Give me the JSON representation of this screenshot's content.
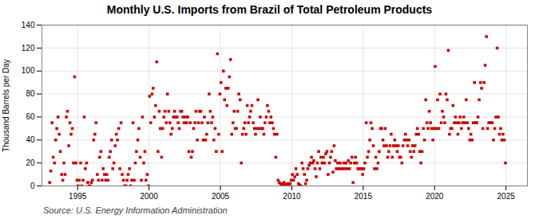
{
  "chart_data": {
    "type": "scatter",
    "title": "Monthly U.S. Imports from Brazil of Total Petroleum Products",
    "ylabel": "Thousand Barrels per Day",
    "source": "Source: U.S. Energy Information Administration",
    "color": "#cc0000",
    "marker": "square",
    "grid": true,
    "xlim": [
      1992.5,
      2026.5
    ],
    "ylim": [
      0,
      140
    ],
    "xticks": [
      1995,
      2000,
      2005,
      2010,
      2015,
      2020,
      2025
    ],
    "yticks": [
      0,
      20,
      40,
      60,
      80,
      100,
      120,
      140
    ],
    "x": [
      1993.04,
      1993.12,
      1993.21,
      1993.29,
      1993.38,
      1993.46,
      1993.54,
      1993.63,
      1993.71,
      1993.79,
      1993.88,
      1993.96,
      1994.04,
      1994.12,
      1994.21,
      1994.29,
      1994.38,
      1994.46,
      1994.54,
      1994.63,
      1994.71,
      1994.79,
      1994.88,
      1994.96,
      1995.04,
      1995.12,
      1995.21,
      1995.29,
      1995.38,
      1995.46,
      1995.54,
      1995.63,
      1995.71,
      1995.79,
      1995.88,
      1995.96,
      1996.04,
      1996.12,
      1996.21,
      1996.29,
      1996.38,
      1996.46,
      1996.54,
      1996.63,
      1996.71,
      1996.79,
      1996.88,
      1996.96,
      1997.04,
      1997.12,
      1997.21,
      1997.29,
      1997.38,
      1997.46,
      1997.54,
      1997.63,
      1997.71,
      1997.79,
      1997.88,
      1997.96,
      1998.04,
      1998.12,
      1998.21,
      1998.29,
      1998.38,
      1998.46,
      1998.54,
      1998.63,
      1998.71,
      1998.79,
      1998.88,
      1998.96,
      1999.04,
      1999.12,
      1999.21,
      1999.29,
      1999.38,
      1999.46,
      1999.54,
      1999.63,
      1999.71,
      1999.79,
      1999.88,
      1999.96,
      2000.04,
      2000.12,
      2000.21,
      2000.29,
      2000.38,
      2000.46,
      2000.54,
      2000.63,
      2000.71,
      2000.79,
      2000.88,
      2000.96,
      2001.04,
      2001.12,
      2001.21,
      2001.29,
      2001.38,
      2001.46,
      2001.54,
      2001.63,
      2001.71,
      2001.79,
      2001.88,
      2001.96,
      2002.04,
      2002.12,
      2002.21,
      2002.29,
      2002.38,
      2002.46,
      2002.54,
      2002.63,
      2002.71,
      2002.79,
      2002.88,
      2002.96,
      2003.04,
      2003.12,
      2003.21,
      2003.29,
      2003.38,
      2003.46,
      2003.54,
      2003.63,
      2003.71,
      2003.79,
      2003.88,
      2003.96,
      2004.04,
      2004.12,
      2004.21,
      2004.29,
      2004.38,
      2004.46,
      2004.54,
      2004.63,
      2004.71,
      2004.79,
      2004.88,
      2004.96,
      2005.04,
      2005.12,
      2005.21,
      2005.29,
      2005.38,
      2005.46,
      2005.54,
      2005.63,
      2005.71,
      2005.79,
      2005.88,
      2005.96,
      2006.04,
      2006.12,
      2006.21,
      2006.29,
      2006.38,
      2006.46,
      2006.54,
      2006.63,
      2006.71,
      2006.79,
      2006.88,
      2006.96,
      2007.04,
      2007.12,
      2007.21,
      2007.29,
      2007.38,
      2007.46,
      2007.54,
      2007.63,
      2007.71,
      2007.79,
      2007.88,
      2007.96,
      2008.04,
      2008.12,
      2008.21,
      2008.29,
      2008.38,
      2008.46,
      2008.54,
      2008.63,
      2008.71,
      2008.79,
      2008.88,
      2008.96,
      2009.04,
      2009.12,
      2009.21,
      2009.29,
      2009.38,
      2009.46,
      2009.54,
      2009.63,
      2009.71,
      2009.79,
      2009.88,
      2009.96,
      2010.04,
      2010.12,
      2010.21,
      2010.29,
      2010.38,
      2010.46,
      2010.54,
      2010.63,
      2010.71,
      2010.79,
      2010.88,
      2010.96,
      2011.04,
      2011.12,
      2011.21,
      2011.29,
      2011.38,
      2011.46,
      2011.54,
      2011.63,
      2011.71,
      2011.79,
      2011.88,
      2011.96,
      2012.04,
      2012.12,
      2012.21,
      2012.29,
      2012.38,
      2012.46,
      2012.54,
      2012.63,
      2012.71,
      2012.79,
      2012.88,
      2012.96,
      2013.04,
      2013.12,
      2013.21,
      2013.29,
      2013.38,
      2013.46,
      2013.54,
      2013.63,
      2013.71,
      2013.79,
      2013.88,
      2013.96,
      2014.04,
      2014.12,
      2014.21,
      2014.29,
      2014.38,
      2014.46,
      2014.54,
      2014.63,
      2014.71,
      2014.79,
      2014.88,
      2014.96,
      2015.04,
      2015.12,
      2015.21,
      2015.29,
      2015.38,
      2015.46,
      2015.54,
      2015.63,
      2015.71,
      2015.79,
      2015.88,
      2015.96,
      2016.04,
      2016.12,
      2016.21,
      2016.29,
      2016.38,
      2016.46,
      2016.54,
      2016.63,
      2016.71,
      2016.79,
      2016.88,
      2016.96,
      2017.04,
      2017.12,
      2017.21,
      2017.29,
      2017.38,
      2017.46,
      2017.54,
      2017.63,
      2017.71,
      2017.79,
      2017.88,
      2017.96,
      2018.04,
      2018.12,
      2018.21,
      2018.29,
      2018.38,
      2018.46,
      2018.54,
      2018.63,
      2018.71,
      2018.79,
      2018.88,
      2018.96,
      2019.04,
      2019.12,
      2019.21,
      2019.29,
      2019.38,
      2019.46,
      2019.54,
      2019.63,
      2019.71,
      2019.79,
      2019.88,
      2019.96,
      2020.04,
      2020.12,
      2020.21,
      2020.29,
      2020.38,
      2020.46,
      2020.54,
      2020.63,
      2020.71,
      2020.79,
      2020.88,
      2020.96,
      2021.04,
      2021.12,
      2021.21,
      2021.29,
      2021.38,
      2021.46,
      2021.54,
      2021.63,
      2021.71,
      2021.79,
      2021.88,
      2021.96,
      2022.04,
      2022.12,
      2022.21,
      2022.29,
      2022.38,
      2022.46,
      2022.54,
      2022.63,
      2022.71,
      2022.79,
      2022.88,
      2022.96,
      2023.04,
      2023.12,
      2023.21,
      2023.29,
      2023.38,
      2023.46,
      2023.54,
      2023.63,
      2023.71,
      2023.79,
      2023.88,
      2023.96,
      2024.04,
      2024.12,
      2024.21,
      2024.29,
      2024.38,
      2024.46,
      2024.54,
      2024.63,
      2024.71,
      2024.79,
      2024.88,
      2024.96
    ],
    "values": [
      3,
      13,
      55,
      25,
      20,
      40,
      50,
      60,
      45,
      30,
      10,
      5,
      20,
      10,
      60,
      65,
      35,
      55,
      45,
      50,
      20,
      95,
      20,
      5,
      0,
      5,
      20,
      0,
      5,
      60,
      15,
      20,
      3,
      0,
      0,
      3,
      5,
      40,
      45,
      55,
      10,
      5,
      25,
      30,
      5,
      15,
      10,
      5,
      10,
      5,
      25,
      30,
      40,
      15,
      20,
      35,
      45,
      40,
      50,
      15,
      55,
      10,
      5,
      0,
      0,
      5,
      10,
      15,
      0,
      5,
      55,
      5,
      20,
      30,
      40,
      50,
      25,
      5,
      60,
      20,
      30,
      5,
      10,
      0,
      78,
      55,
      80,
      85,
      60,
      70,
      108,
      30,
      65,
      50,
      25,
      50,
      60,
      65,
      55,
      80,
      65,
      55,
      45,
      50,
      60,
      65,
      60,
      60,
      55,
      50,
      65,
      65,
      60,
      55,
      60,
      55,
      60,
      30,
      55,
      25,
      30,
      50,
      55,
      65,
      40,
      55,
      65,
      65,
      55,
      40,
      60,
      40,
      45,
      55,
      80,
      65,
      55,
      60,
      40,
      50,
      30,
      115,
      45,
      80,
      90,
      30,
      100,
      75,
      85,
      70,
      85,
      95,
      110,
      45,
      55,
      65,
      50,
      50,
      65,
      80,
      75,
      20,
      45,
      50,
      55,
      45,
      70,
      55,
      60,
      65,
      70,
      55,
      50,
      45,
      50,
      75,
      50,
      60,
      50,
      50,
      45,
      55,
      60,
      70,
      65,
      55,
      60,
      55,
      50,
      45,
      25,
      45,
      5,
      3,
      2,
      1,
      2,
      3,
      1,
      1,
      2,
      1,
      2,
      5,
      10,
      5,
      8,
      15,
      10,
      2,
      1,
      0,
      20,
      15,
      10,
      2,
      5,
      15,
      18,
      20,
      25,
      20,
      22,
      15,
      8,
      20,
      30,
      15,
      25,
      20,
      25,
      20,
      28,
      30,
      10,
      20,
      25,
      30,
      12,
      35,
      22,
      15,
      20,
      15,
      20,
      15,
      15,
      20,
      15,
      20,
      15,
      22,
      15,
      20,
      25,
      3,
      20,
      25,
      20,
      15,
      15,
      15,
      15,
      10,
      15,
      20,
      55,
      25,
      30,
      40,
      55,
      50,
      35,
      15,
      25,
      15,
      20,
      30,
      50,
      50,
      40,
      35,
      50,
      35,
      25,
      30,
      35,
      45,
      25,
      35,
      40,
      35,
      30,
      35,
      25,
      25,
      20,
      35,
      40,
      45,
      40,
      35,
      40,
      30,
      25,
      35,
      30,
      35,
      45,
      50,
      45,
      30,
      20,
      30,
      50,
      40,
      75,
      55,
      50,
      65,
      55,
      50,
      40,
      50,
      104,
      50,
      75,
      50,
      80,
      55,
      65,
      60,
      55,
      80,
      75,
      118,
      45,
      50,
      50,
      70,
      55,
      60,
      55,
      45,
      55,
      60,
      50,
      55,
      60,
      55,
      75,
      55,
      50,
      40,
      45,
      40,
      55,
      90,
      55,
      55,
      60,
      75,
      90,
      85,
      50,
      90,
      105,
      130,
      50,
      55,
      55,
      55,
      55,
      40,
      50,
      60,
      120,
      60,
      45,
      50,
      40,
      45,
      40,
      20
    ]
  }
}
